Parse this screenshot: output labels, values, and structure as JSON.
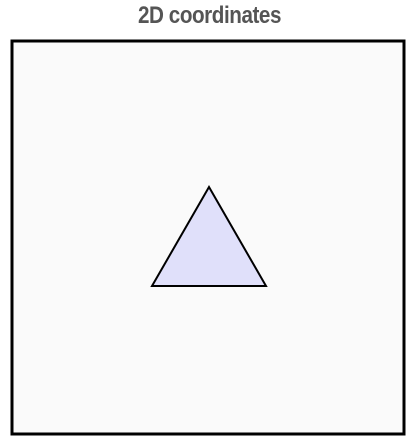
{
  "title": "2D coordinates",
  "colors": {
    "title": "#555555",
    "frame_stroke": "#000000",
    "frame_fill": "#fafafa",
    "triangle_fill": "#e0e0fa",
    "triangle_stroke": "#000000"
  },
  "shapes": [
    {
      "name": "triangle",
      "icon": "triangle-shape"
    }
  ]
}
